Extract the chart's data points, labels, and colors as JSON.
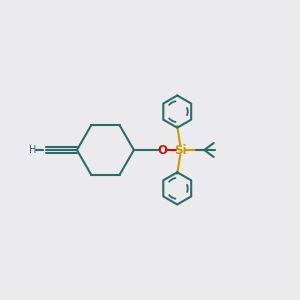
{
  "background_color": "#ebebed",
  "bond_color": "#2d6b6b",
  "oxygen_color": "#cc1100",
  "silicon_color": "#cc9900",
  "figsize": [
    3.0,
    3.0
  ],
  "dpi": 100,
  "xlim": [
    0,
    12
  ],
  "ylim": [
    0,
    12
  ]
}
